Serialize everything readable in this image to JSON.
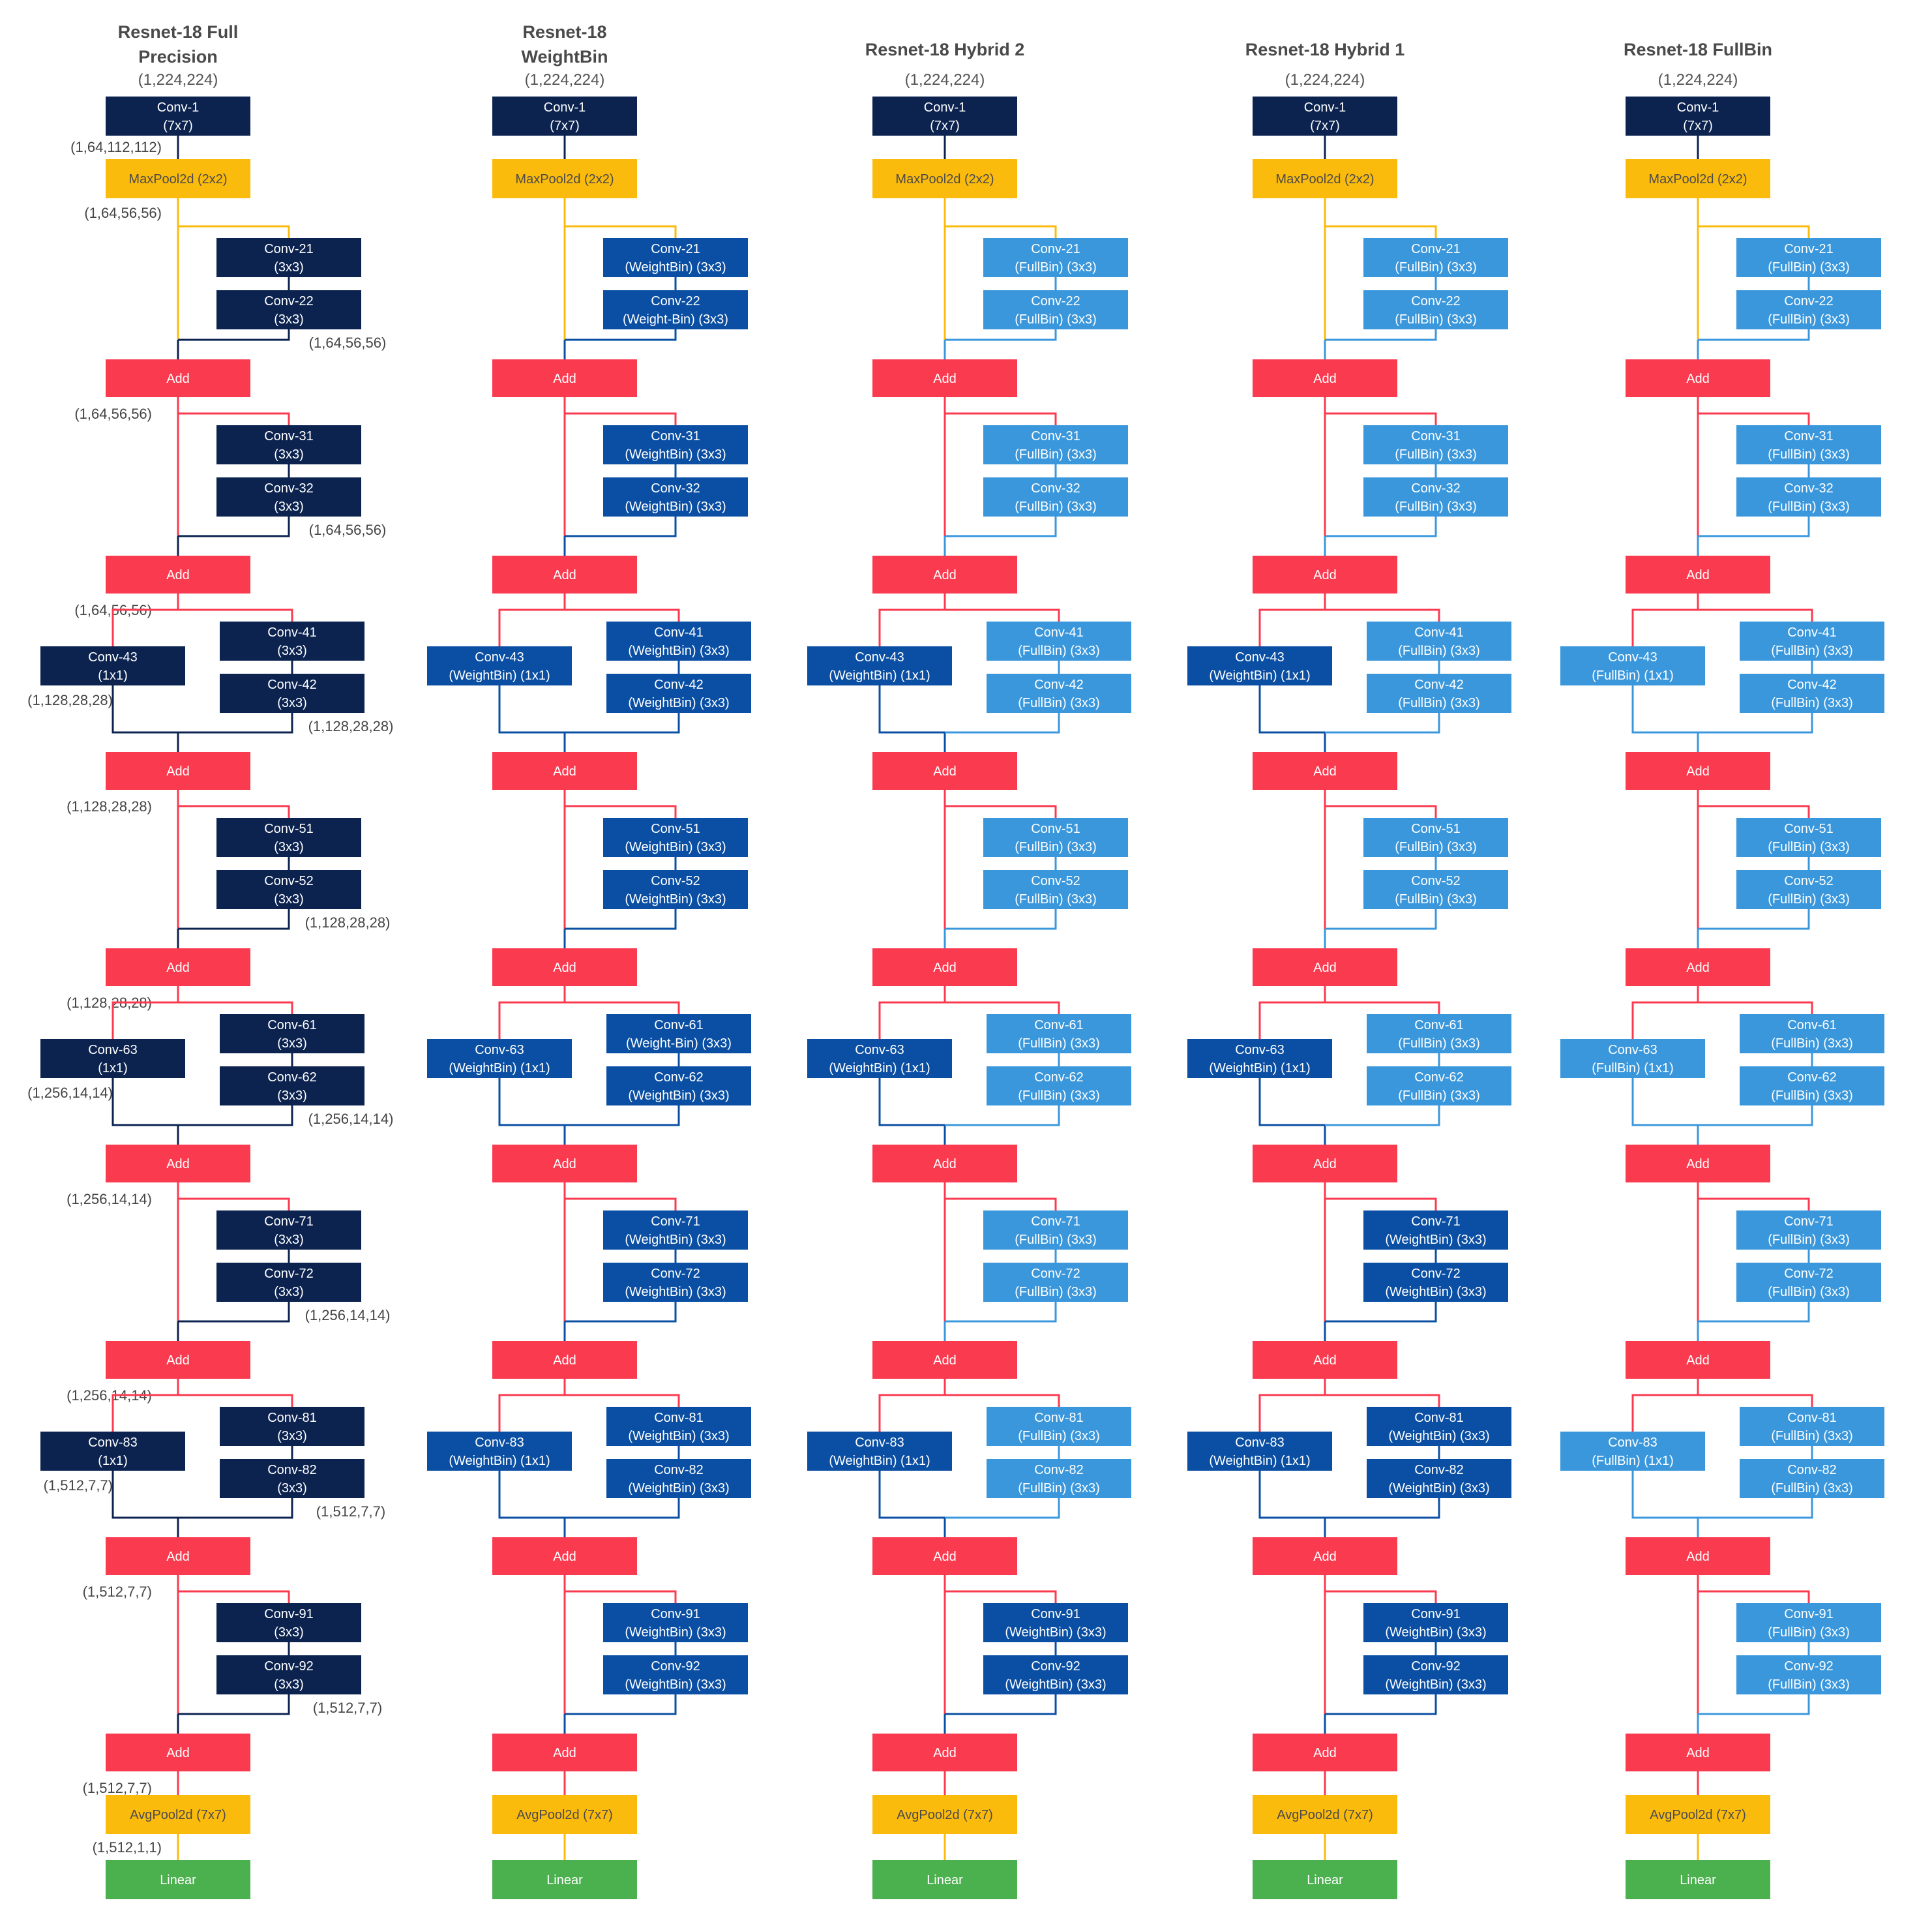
{
  "colors": {
    "fp": "#0c2350",
    "wb": "#0a4fa3",
    "fb": "#3a97dc",
    "add": "#fa3a4f",
    "pool": "#fbbb0d",
    "linear": "#4bb04e",
    "text_on_pool": "#4a4a4a",
    "text_on_box": "#ffffff"
  },
  "labels": {
    "conv1": [
      "Conv-1",
      "(7x7)"
    ],
    "maxpool": "MaxPool2d (2x2)",
    "add": "Add",
    "avgpool": "AvgPool2d (7x7)",
    "linear": "Linear"
  },
  "columns": [
    {
      "title": [
        "Resnet-18 Full",
        "Precision"
      ],
      "input_shape": "(1,224,224)",
      "blocks": [
        {
          "convs": [
            [
              "Conv-21",
              "(3x3)",
              "fp"
            ],
            [
              "Conv-22",
              "(3x3)",
              "fp"
            ]
          ]
        },
        {
          "convs": [
            [
              "Conv-31",
              "(3x3)",
              "fp"
            ],
            [
              "Conv-32",
              "(3x3)",
              "fp"
            ]
          ]
        },
        {
          "convs": [
            [
              "Conv-41",
              "(3x3)",
              "fp"
            ],
            [
              "Conv-42",
              "(3x3)",
              "fp"
            ]
          ],
          "short": [
            "Conv-43",
            "(1x1)",
            "fp"
          ]
        },
        {
          "convs": [
            [
              "Conv-51",
              "(3x3)",
              "fp"
            ],
            [
              "Conv-52",
              "(3x3)",
              "fp"
            ]
          ]
        },
        {
          "convs": [
            [
              "Conv-61",
              "(3x3)",
              "fp"
            ],
            [
              "Conv-62",
              "(3x3)",
              "fp"
            ]
          ],
          "short": [
            "Conv-63",
            "(1x1)",
            "fp"
          ]
        },
        {
          "convs": [
            [
              "Conv-71",
              "(3x3)",
              "fp"
            ],
            [
              "Conv-72",
              "(3x3)",
              "fp"
            ]
          ]
        },
        {
          "convs": [
            [
              "Conv-81",
              "(3x3)",
              "fp"
            ],
            [
              "Conv-82",
              "(3x3)",
              "fp"
            ]
          ],
          "short": [
            "Conv-83",
            "(1x1)",
            "fp"
          ]
        },
        {
          "convs": [
            [
              "Conv-91",
              "(3x3)",
              "fp"
            ],
            [
              "Conv-92",
              "(3x3)",
              "fp"
            ]
          ]
        }
      ],
      "dims": {
        "after_conv1": "(1,64,112,112)",
        "after_pool": "(1,64,56,56)",
        "conv_outs": [
          "(1,64,56,56)",
          "(1,64,56,56)",
          "(1,128,28,28)",
          "(1,128,28,28)",
          "(1,256,14,14)",
          "(1,256,14,14)",
          "(1,512,7,7)",
          "(1,512,7,7)"
        ],
        "add_outs": [
          "(1,64,56,56)",
          "(1,64,56,56)",
          "(1,128,28,28)",
          "(1,128,28,28)",
          "(1,256,14,14)",
          "(1,256,14,14)",
          "(1,512,7,7)",
          "(1,512,7,7)"
        ],
        "short_outs": [
          "(1,128,28,28)",
          "(1,256,14,14)",
          "(1,512,7,7)"
        ],
        "after_avgpool": "(1,512,1,1)"
      }
    },
    {
      "title": [
        "Resnet-18",
        "WeightBin"
      ],
      "input_shape": "(1,224,224)",
      "blocks": [
        {
          "convs": [
            [
              "Conv-21",
              "(WeightBin) (3x3)",
              "wb"
            ],
            [
              "Conv-22",
              "(Weight-Bin) (3x3)",
              "wb"
            ]
          ]
        },
        {
          "convs": [
            [
              "Conv-31",
              "(WeightBin) (3x3)",
              "wb"
            ],
            [
              "Conv-32",
              "(WeightBin) (3x3)",
              "wb"
            ]
          ]
        },
        {
          "convs": [
            [
              "Conv-41",
              "(WeightBin) (3x3)",
              "wb"
            ],
            [
              "Conv-42",
              "(WeightBin) (3x3)",
              "wb"
            ]
          ],
          "short": [
            "Conv-43",
            "(WeightBin) (1x1)",
            "wb"
          ]
        },
        {
          "convs": [
            [
              "Conv-51",
              "(WeightBin) (3x3)",
              "wb"
            ],
            [
              "Conv-52",
              "(WeightBin) (3x3)",
              "wb"
            ]
          ]
        },
        {
          "convs": [
            [
              "Conv-61",
              "(Weight-Bin) (3x3)",
              "wb"
            ],
            [
              "Conv-62",
              "(WeightBin) (3x3)",
              "wb"
            ]
          ],
          "short": [
            "Conv-63",
            "(WeightBin) (1x1)",
            "wb"
          ]
        },
        {
          "convs": [
            [
              "Conv-71",
              "(WeightBin) (3x3)",
              "wb"
            ],
            [
              "Conv-72",
              "(WeightBin) (3x3)",
              "wb"
            ]
          ]
        },
        {
          "convs": [
            [
              "Conv-81",
              "(WeightBin) (3x3)",
              "wb"
            ],
            [
              "Conv-82",
              "(WeightBin) (3x3)",
              "wb"
            ]
          ],
          "short": [
            "Conv-83",
            "(WeightBin) (1x1)",
            "wb"
          ]
        },
        {
          "convs": [
            [
              "Conv-91",
              "(WeightBin) (3x3)",
              "wb"
            ],
            [
              "Conv-92",
              "(WeightBin) (3x3)",
              "wb"
            ]
          ]
        }
      ]
    },
    {
      "title": [
        "Resnet-18 Hybrid 2"
      ],
      "input_shape": "(1,224,224)",
      "blocks": [
        {
          "convs": [
            [
              "Conv-21",
              "(FullBin) (3x3)",
              "fb"
            ],
            [
              "Conv-22",
              "(FullBin) (3x3)",
              "fb"
            ]
          ]
        },
        {
          "convs": [
            [
              "Conv-31",
              "(FullBin) (3x3)",
              "fb"
            ],
            [
              "Conv-32",
              "(FullBin) (3x3)",
              "fb"
            ]
          ]
        },
        {
          "convs": [
            [
              "Conv-41",
              "(FullBin) (3x3)",
              "fb"
            ],
            [
              "Conv-42",
              "(FullBin) (3x3)",
              "fb"
            ]
          ],
          "short": [
            "Conv-43",
            "(WeightBin) (1x1)",
            "wb"
          ]
        },
        {
          "convs": [
            [
              "Conv-51",
              "(FullBin) (3x3)",
              "fb"
            ],
            [
              "Conv-52",
              "(FullBin) (3x3)",
              "fb"
            ]
          ]
        },
        {
          "convs": [
            [
              "Conv-61",
              "(FullBin) (3x3)",
              "fb"
            ],
            [
              "Conv-62",
              "(FullBin) (3x3)",
              "fb"
            ]
          ],
          "short": [
            "Conv-63",
            "(WeightBin) (1x1)",
            "wb"
          ]
        },
        {
          "convs": [
            [
              "Conv-71",
              "(FullBin) (3x3)",
              "fb"
            ],
            [
              "Conv-72",
              "(FullBin) (3x3)",
              "fb"
            ]
          ]
        },
        {
          "convs": [
            [
              "Conv-81",
              "(FullBin) (3x3)",
              "fb"
            ],
            [
              "Conv-82",
              "(FullBin) (3x3)",
              "fb"
            ]
          ],
          "short": [
            "Conv-83",
            "(WeightBin) (1x1)",
            "wb"
          ]
        },
        {
          "convs": [
            [
              "Conv-91",
              "(WeightBin) (3x3)",
              "wb"
            ],
            [
              "Conv-92",
              "(WeightBin) (3x3)",
              "wb"
            ]
          ]
        }
      ]
    },
    {
      "title": [
        "Resnet-18 Hybrid 1"
      ],
      "input_shape": "(1,224,224)",
      "blocks": [
        {
          "convs": [
            [
              "Conv-21",
              "(FullBin) (3x3)",
              "fb"
            ],
            [
              "Conv-22",
              "(FullBin) (3x3)",
              "fb"
            ]
          ]
        },
        {
          "convs": [
            [
              "Conv-31",
              "(FullBin) (3x3)",
              "fb"
            ],
            [
              "Conv-32",
              "(FullBin) (3x3)",
              "fb"
            ]
          ]
        },
        {
          "convs": [
            [
              "Conv-41",
              "(FullBin) (3x3)",
              "fb"
            ],
            [
              "Conv-42",
              "(FullBin) (3x3)",
              "fb"
            ]
          ],
          "short": [
            "Conv-43",
            "(WeightBin) (1x1)",
            "wb"
          ]
        },
        {
          "convs": [
            [
              "Conv-51",
              "(FullBin) (3x3)",
              "fb"
            ],
            [
              "Conv-52",
              "(FullBin) (3x3)",
              "fb"
            ]
          ]
        },
        {
          "convs": [
            [
              "Conv-61",
              "(FullBin) (3x3)",
              "fb"
            ],
            [
              "Conv-62",
              "(FullBin) (3x3)",
              "fb"
            ]
          ],
          "short": [
            "Conv-63",
            "(WeightBin) (1x1)",
            "wb"
          ]
        },
        {
          "convs": [
            [
              "Conv-71",
              "(WeightBin) (3x3)",
              "wb"
            ],
            [
              "Conv-72",
              "(WeightBin) (3x3)",
              "wb"
            ]
          ]
        },
        {
          "convs": [
            [
              "Conv-81",
              "(WeightBin) (3x3)",
              "wb"
            ],
            [
              "Conv-82",
              "(WeightBin) (3x3)",
              "wb"
            ]
          ],
          "short": [
            "Conv-83",
            "(WeightBin) (1x1)",
            "wb"
          ]
        },
        {
          "convs": [
            [
              "Conv-91",
              "(WeightBin) (3x3)",
              "wb"
            ],
            [
              "Conv-92",
              "(WeightBin) (3x3)",
              "wb"
            ]
          ]
        }
      ]
    },
    {
      "title": [
        "Resnet-18 FullBin"
      ],
      "input_shape": "(1,224,224)",
      "blocks": [
        {
          "convs": [
            [
              "Conv-21",
              "(FullBin) (3x3)",
              "fb"
            ],
            [
              "Conv-22",
              "(FullBin) (3x3)",
              "fb"
            ]
          ]
        },
        {
          "convs": [
            [
              "Conv-31",
              "(FullBin) (3x3)",
              "fb"
            ],
            [
              "Conv-32",
              "(FullBin) (3x3)",
              "fb"
            ]
          ]
        },
        {
          "convs": [
            [
              "Conv-41",
              "(FullBin) (3x3)",
              "fb"
            ],
            [
              "Conv-42",
              "(FullBin) (3x3)",
              "fb"
            ]
          ],
          "short": [
            "Conv-43",
            "(FullBin) (1x1)",
            "fb"
          ]
        },
        {
          "convs": [
            [
              "Conv-51",
              "(FullBin) (3x3)",
              "fb"
            ],
            [
              "Conv-52",
              "(FullBin) (3x3)",
              "fb"
            ]
          ]
        },
        {
          "convs": [
            [
              "Conv-61",
              "(FullBin) (3x3)",
              "fb"
            ],
            [
              "Conv-62",
              "(FullBin) (3x3)",
              "fb"
            ]
          ],
          "short": [
            "Conv-63",
            "(FullBin) (1x1)",
            "fb"
          ]
        },
        {
          "convs": [
            [
              "Conv-71",
              "(FullBin) (3x3)",
              "fb"
            ],
            [
              "Conv-72",
              "(FullBin) (3x3)",
              "fb"
            ]
          ]
        },
        {
          "convs": [
            [
              "Conv-81",
              "(FullBin) (3x3)",
              "fb"
            ],
            [
              "Conv-82",
              "(FullBin) (3x3)",
              "fb"
            ]
          ],
          "short": [
            "Conv-83",
            "(FullBin) (1x1)",
            "fb"
          ]
        },
        {
          "convs": [
            [
              "Conv-91",
              "(FullBin) (3x3)",
              "fb"
            ],
            [
              "Conv-92",
              "(FullBin) (3x3)",
              "fb"
            ]
          ]
        }
      ]
    }
  ]
}
